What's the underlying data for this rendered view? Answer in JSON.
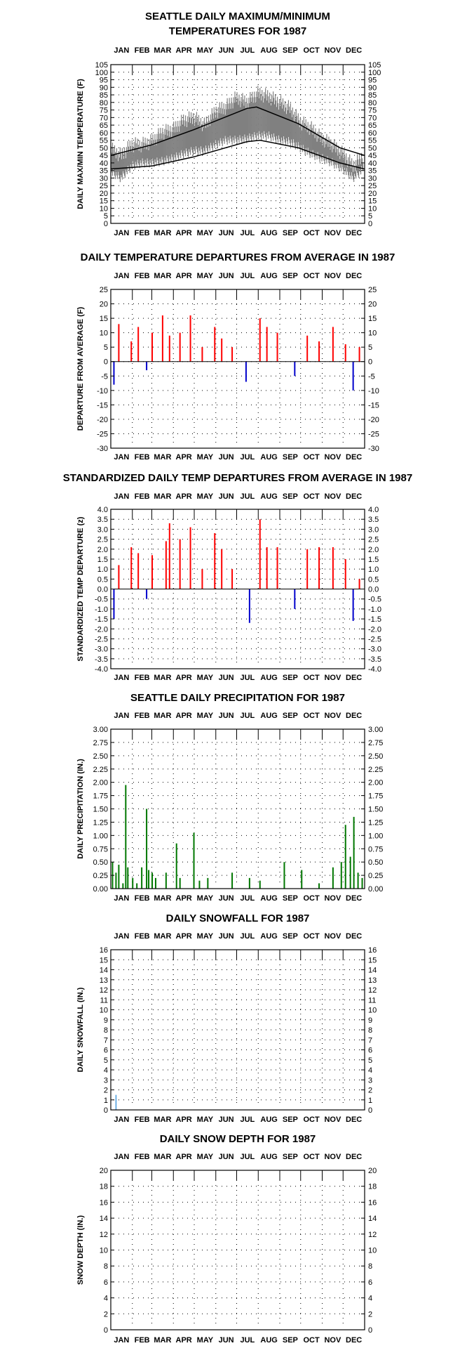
{
  "months": [
    "JAN",
    "FEB",
    "MAR",
    "APR",
    "MAY",
    "JUN",
    "JUL",
    "AUG",
    "SEP",
    "OCT",
    "NOV",
    "DEC"
  ],
  "colors": {
    "maxmin": "#808080",
    "normal": "#000000",
    "above": "#ff0000",
    "below": "#0000cc",
    "precip": "#007700",
    "snow": "#4499dd"
  },
  "chart_data": [
    {
      "type": "line",
      "title": [
        "SEATTLE DAILY MAXIMUM/MINIMUM",
        "TEMPERATURES FOR 1987"
      ],
      "ylabel": "DAILY MAX/MIN TEMPERATURE (F)",
      "ylim": [
        0,
        105
      ],
      "yticks": [
        0,
        5,
        10,
        15,
        20,
        25,
        30,
        35,
        40,
        45,
        50,
        55,
        60,
        65,
        70,
        75,
        80,
        85,
        90,
        95,
        100,
        105
      ],
      "series": [
        {
          "values": [
            [
              1,
              49,
              34
            ],
            [
              15,
              45,
              30
            ],
            [
              31,
              52,
              38
            ],
            [
              45,
              52,
              40
            ],
            [
              59,
              54,
              40
            ],
            [
              74,
              60,
              41
            ],
            [
              90,
              62,
              43
            ],
            [
              105,
              68,
              46
            ],
            [
              120,
              70,
              48
            ],
            [
              135,
              65,
              48
            ],
            [
              151,
              74,
              52
            ],
            [
              166,
              77,
              55
            ],
            [
              181,
              83,
              55
            ],
            [
              196,
              80,
              56
            ],
            [
              212,
              86,
              58
            ],
            [
              227,
              84,
              58
            ],
            [
              243,
              80,
              55
            ],
            [
              258,
              76,
              54
            ],
            [
              273,
              67,
              50
            ],
            [
              288,
              63,
              46
            ],
            [
              304,
              56,
              43
            ],
            [
              319,
              52,
              40
            ],
            [
              334,
              46,
              36
            ],
            [
              349,
              38,
              30
            ],
            [
              364,
              45,
              36
            ]
          ]
        },
        {
          "values": [
            [
              1,
              45
            ],
            [
              60,
              52
            ],
            [
              120,
              62
            ],
            [
              196,
              76
            ],
            [
              210,
              77
            ],
            [
              270,
              66
            ],
            [
              330,
              50
            ],
            [
              365,
              45
            ]
          ]
        },
        {
          "values": [
            [
              1,
              36
            ],
            [
              60,
              38
            ],
            [
              120,
              44
            ],
            [
              196,
              54
            ],
            [
              215,
              55
            ],
            [
              270,
              50
            ],
            [
              330,
              40
            ],
            [
              365,
              36
            ]
          ]
        }
      ]
    },
    {
      "type": "bar",
      "title": "DAILY TEMPERATURE DEPARTURES FROM AVERAGE IN 1987",
      "ylabel": "DEPARTURE FROM AVERAGE (F)",
      "ylim": [
        -30,
        25
      ],
      "yticks": [
        -30,
        -25,
        -20,
        -15,
        -10,
        -5,
        0,
        5,
        10,
        15,
        20,
        25
      ],
      "x": [
        5,
        12,
        30,
        40,
        52,
        60,
        75,
        85,
        100,
        115,
        132,
        150,
        160,
        175,
        195,
        215,
        225,
        240,
        265,
        283,
        300,
        320,
        338,
        349,
        358
      ],
      "values": [
        -8,
        13,
        7,
        12,
        -3,
        10,
        16,
        9,
        10,
        16,
        5,
        12,
        8,
        5,
        -7,
        15,
        12,
        10,
        -5,
        9,
        7,
        12,
        6,
        -10,
        5
      ]
    },
    {
      "type": "bar",
      "title": "STANDARDIZED DAILY TEMP DEPARTURES FROM AVERAGE IN 1987",
      "ylabel": "STANDARDIZED TEMP DEPARTURE (z)",
      "ylim": [
        -4,
        4
      ],
      "yticks": [
        -4,
        -3.5,
        -3,
        -2.5,
        -2,
        -1.5,
        -1,
        -0.5,
        0,
        0.5,
        1,
        1.5,
        2,
        2.5,
        3,
        3.5,
        4
      ],
      "x": [
        5,
        12,
        30,
        40,
        52,
        60,
        80,
        85,
        100,
        115,
        132,
        150,
        160,
        175,
        200,
        215,
        225,
        240,
        265,
        283,
        300,
        320,
        338,
        349,
        358
      ],
      "values": [
        -1.5,
        1.2,
        2.1,
        1.8,
        -0.5,
        1.7,
        2.4,
        3.3,
        2.5,
        3.1,
        1.0,
        2.8,
        2.0,
        1.0,
        -1.7,
        3.5,
        2.1,
        2.1,
        -1.0,
        2.0,
        2.1,
        2.1,
        1.5,
        -1.6,
        0.5
      ]
    },
    {
      "type": "bar",
      "title": "SEATTLE DAILY PRECIPITATION FOR 1987",
      "ylabel": "DAILY PRECIPITATION (IN.)",
      "ylim": [
        0,
        3
      ],
      "yticks": [
        0,
        0.25,
        0.5,
        0.75,
        1,
        1.25,
        1.5,
        1.75,
        2,
        2.25,
        2.5,
        2.75,
        3
      ],
      "x": [
        3,
        8,
        12,
        18,
        22,
        25,
        32,
        38,
        45,
        52,
        55,
        60,
        65,
        80,
        95,
        100,
        120,
        128,
        140,
        175,
        200,
        215,
        250,
        275,
        300,
        320,
        332,
        338,
        345,
        350,
        356,
        362
      ],
      "values": [
        0.5,
        0.3,
        0.45,
        0.1,
        1.95,
        0.4,
        0.2,
        0.1,
        0.4,
        1.5,
        0.35,
        0.3,
        0.2,
        0.3,
        0.85,
        0.2,
        1.05,
        0.15,
        0.2,
        0.3,
        0.2,
        0.15,
        0.5,
        0.35,
        0.1,
        0.4,
        0.5,
        1.2,
        0.6,
        1.35,
        0.3,
        0.2
      ]
    },
    {
      "type": "bar",
      "title": "DAILY SNOWFALL FOR 1987",
      "ylabel": "DAILY SNOWFALL (IN.)",
      "ylim": [
        0,
        16
      ],
      "yticks": [
        0,
        1,
        2,
        3,
        4,
        5,
        6,
        7,
        8,
        9,
        10,
        11,
        12,
        13,
        14,
        15,
        16
      ],
      "x": [
        8
      ],
      "values": [
        1.5
      ]
    },
    {
      "type": "bar",
      "title": "DAILY SNOW DEPTH FOR 1987",
      "ylabel": "SNOW DEPTH (IN.)",
      "ylim": [
        0,
        20
      ],
      "yticks": [
        0,
        2,
        4,
        6,
        8,
        10,
        12,
        14,
        16,
        18,
        20
      ],
      "x": [],
      "values": []
    }
  ]
}
